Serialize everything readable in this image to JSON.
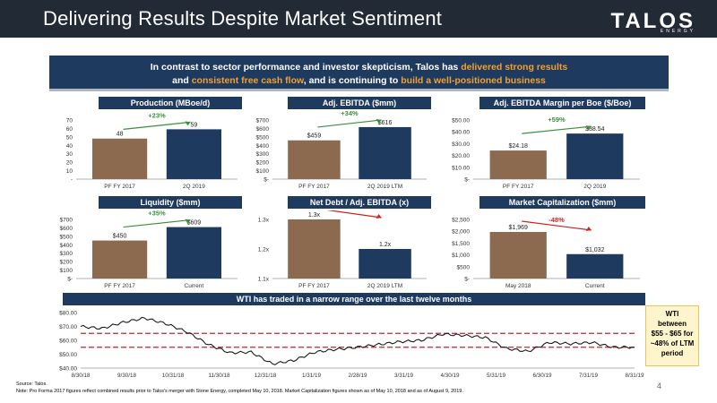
{
  "header": {
    "title": "Delivering Results Despite Market Sentiment",
    "logo": "TALOS",
    "logo_sub": "ENERGY"
  },
  "banner": {
    "line1_pre": "In contrast to sector performance and investor skepticism, Talos has ",
    "line1_hl": "delivered strong results",
    "line2_pre": "and ",
    "line2_hl1": "consistent free cash flow",
    "line2_mid": ", and is continuing to ",
    "line2_hl2": "build a well-positioned business"
  },
  "colors": {
    "navy": "#1f3a5f",
    "brown": "#8b6a4f",
    "green": "#3a8f3a",
    "red": "#d02020",
    "wti": "#1a1a1a",
    "band": "#c0282c"
  },
  "chart_data": [
    {
      "id": "production",
      "type": "bar",
      "title": "Production (MBoe/d)",
      "categories": [
        "PF FY 2017",
        "2Q 2019"
      ],
      "values": [
        48,
        59
      ],
      "labels": [
        "48",
        "59"
      ],
      "yticks": [
        "70",
        "60",
        "50",
        "40",
        "30",
        "20",
        "10",
        "-"
      ],
      "ylim": [
        0,
        70
      ],
      "change": "+23%",
      "change_dir": "up"
    },
    {
      "id": "ebitda",
      "type": "bar",
      "title": "Adj. EBITDA ($mm)",
      "categories": [
        "PF FY 2017",
        "2Q 2019 LTM"
      ],
      "values": [
        459,
        616
      ],
      "labels": [
        "$459",
        "$616"
      ],
      "yticks": [
        "$700",
        "$600",
        "$500",
        "$400",
        "$300",
        "$200",
        "$100",
        "$-"
      ],
      "ylim": [
        0,
        700
      ],
      "change": "+34%",
      "change_dir": "up"
    },
    {
      "id": "margin",
      "type": "bar",
      "title": "Adj. EBITDA Margin per Boe ($/Boe)",
      "categories": [
        "PF FY 2017",
        "2Q 2019"
      ],
      "values": [
        24.18,
        38.54
      ],
      "labels": [
        "$24.18",
        "$38.54"
      ],
      "yticks": [
        "$50.00",
        "$40.00",
        "$30.00",
        "$20.00",
        "$10.00",
        "$-"
      ],
      "ylim": [
        0,
        50
      ],
      "change": "+59%",
      "change_dir": "up"
    },
    {
      "id": "liquidity",
      "type": "bar",
      "title": "Liquidity ($mm)",
      "categories": [
        "PF FY 2017",
        "Current"
      ],
      "values": [
        450,
        609
      ],
      "labels": [
        "$450",
        "$609"
      ],
      "yticks": [
        "$700",
        "$600",
        "$500",
        "$400",
        "$300",
        "$200",
        "$100",
        "$-"
      ],
      "ylim": [
        0,
        700
      ],
      "change": "+35%",
      "change_dir": "up"
    },
    {
      "id": "leverage",
      "type": "bar",
      "title": "Net Debt / Adj. EBITDA (x)",
      "categories": [
        "PF FY 2017",
        "2Q 2019 LTM"
      ],
      "values": [
        1.3,
        1.2
      ],
      "labels": [
        "1.3x",
        "1.2x"
      ],
      "yticks": [
        "1.3x",
        "1.2x",
        "1.1x"
      ],
      "ylim": [
        1.1,
        1.3
      ],
      "change": "-8%",
      "change_dir": "down"
    },
    {
      "id": "mktcap",
      "type": "bar",
      "title": "Market Capitalization ($mm)",
      "categories": [
        "May 2018",
        "Current"
      ],
      "values": [
        1969,
        1032
      ],
      "labels": [
        "$1,969",
        "$1,032"
      ],
      "yticks": [
        "$2,500",
        "$2,000",
        "$1,500",
        "$1,000",
        "$500",
        "$-"
      ],
      "ylim": [
        0,
        2500
      ],
      "change": "-48%",
      "change_dir": "down"
    },
    {
      "id": "wti",
      "type": "line",
      "title": "WTI has traded in a narrow range over the last twelve months",
      "x": [
        "8/30/18",
        "9/15/18",
        "9/30/18",
        "10/3/18",
        "10/15/18",
        "10/31/18",
        "11/15/18",
        "11/30/18",
        "12/15/18",
        "12/24/18",
        "12/31/18",
        "1/15/19",
        "1/31/19",
        "2/15/19",
        "2/28/19",
        "3/15/19",
        "3/31/19",
        "4/15/19",
        "4/30/19",
        "5/15/19",
        "5/31/19",
        "6/15/19",
        "6/30/19",
        "7/15/19",
        "7/31/19",
        "8/15/19",
        "8/31/19"
      ],
      "values": [
        70,
        68.5,
        73,
        76,
        72,
        66,
        57,
        51,
        51.5,
        43,
        45.5,
        51.5,
        53.5,
        55,
        57,
        59,
        60,
        64.5,
        63.5,
        62,
        54,
        52,
        58.5,
        57.5,
        58.5,
        55,
        55
      ],
      "xticks": [
        "8/30/18",
        "9/30/18",
        "10/31/18",
        "11/30/18",
        "12/31/18",
        "1/31/19",
        "2/28/19",
        "3/31/19",
        "4/30/19",
        "5/31/19",
        "6/30/19",
        "7/31/19",
        "8/31/19"
      ],
      "yticks": [
        "$80.00",
        "$70.00",
        "$60.00",
        "$50.00",
        "$40.00"
      ],
      "ylim": [
        40,
        80
      ],
      "band": [
        55,
        65
      ]
    }
  ],
  "wti_note": {
    "l1": "WTI",
    "l2": "between",
    "l3": "$55 - $65 for",
    "l4": "~48% of LTM",
    "l5": "period"
  },
  "footer": {
    "source": "Source: Talos.",
    "note": "Note: Pro Forma 2017 figures reflect combined results prior to Talos's merger with Stone Energy, completed May 10, 2018. Market Capitalization figures shown as of May 10, 2018 and as of August 9, 2019.",
    "page": "4"
  }
}
